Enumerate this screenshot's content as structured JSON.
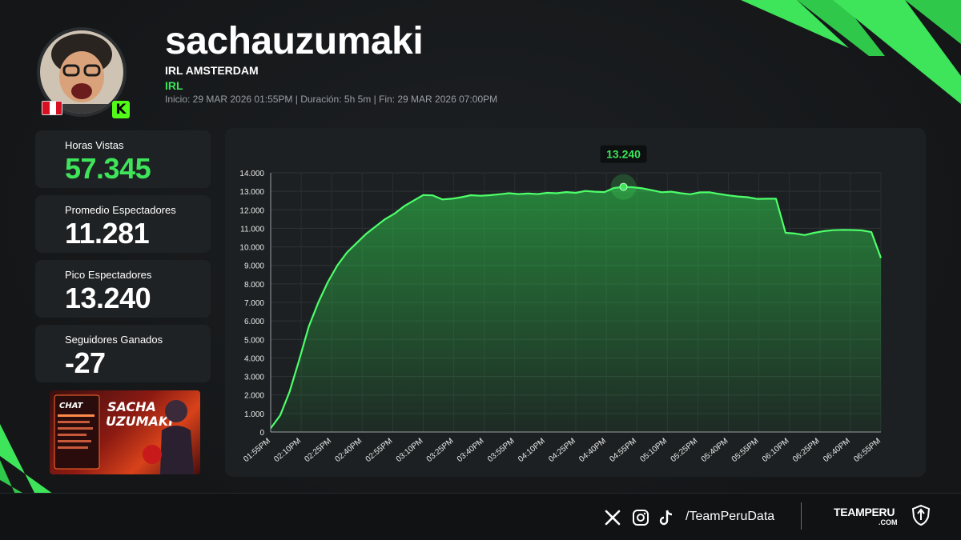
{
  "streamer": {
    "name": "sachauzumaki",
    "stream_title": "IRL AMSTERDAM",
    "category": "IRL",
    "meta": "Inicio: 29 MAR 2026 01:55PM  |  Duración: 5h 5m  |  Fin: 29 MAR 2026 07:00PM",
    "platform_badge": "K"
  },
  "stats": [
    {
      "label": "Horas Vistas",
      "value": "57.345",
      "accent": true
    },
    {
      "label": "Promedio Espectadores",
      "value": "11.281",
      "accent": false
    },
    {
      "label": "Pico Espectadores",
      "value": "13.240",
      "accent": false
    },
    {
      "label": "Seguidores Ganados",
      "value": "-27",
      "accent": false
    }
  ],
  "banner": {
    "title_line1": "SACHA",
    "title_line2": "UZUMAKI",
    "chat_label": "CHAT"
  },
  "footer": {
    "handle": "/TeamPeruData",
    "brand": "TEAMPERU",
    "brand_sub": ".COM",
    "icons": [
      "x-logo-icon",
      "instagram-icon",
      "tiktok-icon",
      "shield-logo-icon"
    ]
  },
  "colors": {
    "accent": "#3ee45a",
    "line": "#4dff6a",
    "background": "#16181a",
    "panel": "#1d2022"
  },
  "chart_data": {
    "type": "area",
    "title": "",
    "xlabel": "",
    "ylabel": "",
    "ylim": [
      0,
      14000
    ],
    "yticks": [
      "0",
      "1.000",
      "2.000",
      "3.000",
      "4.000",
      "5.000",
      "6.000",
      "7.000",
      "8.000",
      "9.000",
      "10.000",
      "11.000",
      "12.000",
      "13.000",
      "14.000"
    ],
    "xticks": [
      "01:55PM",
      "02:10PM",
      "02:25PM",
      "02:40PM",
      "02:55PM",
      "03:10PM",
      "03:25PM",
      "03:40PM",
      "03:55PM",
      "04:10PM",
      "04:25PM",
      "04:40PM",
      "04:55PM",
      "05:10PM",
      "05:25PM",
      "05:40PM",
      "05:55PM",
      "06:10PM",
      "06:25PM",
      "06:40PM",
      "06:55PM"
    ],
    "grid": true,
    "peak_label": "13.240",
    "series": [
      {
        "values": [
          200,
          900,
          2200,
          3900,
          5700,
          7000,
          8100,
          9000,
          9700,
          10200,
          10700,
          11100,
          11500,
          11800,
          12200,
          12500,
          12800,
          12780,
          12560,
          12600,
          12680,
          12790,
          12760,
          12790,
          12840,
          12900,
          12850,
          12880,
          12850,
          12920,
          12900,
          12960,
          12920,
          13020,
          12980,
          12960,
          13180,
          13240,
          13220,
          13160,
          13060,
          12950,
          12980,
          12900,
          12840,
          12940,
          12950,
          12860,
          12780,
          12720,
          12680,
          12590,
          12600,
          12600,
          10760,
          10720,
          10640,
          10760,
          10850,
          10900,
          10920,
          10910,
          10890,
          10800,
          9400
        ]
      }
    ]
  }
}
